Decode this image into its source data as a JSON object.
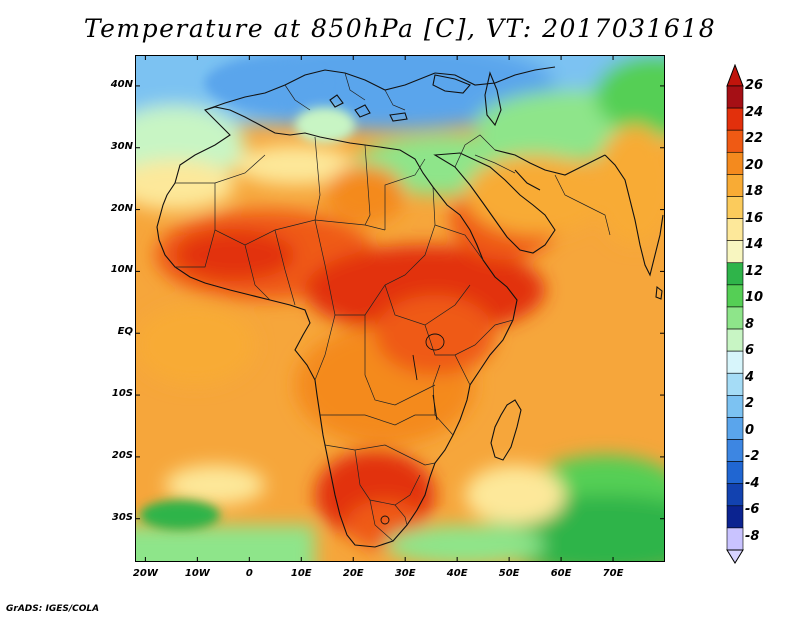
{
  "title": "Temperature at 850hPa [C], VT: 2017031618",
  "credit": "GrADS: IGES/COLA",
  "map": {
    "variable": "Temperature at 850hPa",
    "units": "C",
    "valid_time": "2017031618",
    "lon_range": [
      -22,
      80
    ],
    "lat_range": [
      -37,
      45
    ],
    "projection": "latlon",
    "lat_labels": [
      "40N",
      "30N",
      "20N",
      "10N",
      "EQ",
      "10S",
      "20S",
      "30S"
    ],
    "lat_values": [
      40,
      30,
      20,
      10,
      0,
      -10,
      -20,
      -30
    ],
    "lon_labels": [
      "20W",
      "10W",
      "0",
      "10E",
      "20E",
      "30E",
      "40E",
      "50E",
      "60E",
      "70E"
    ],
    "lon_values": [
      -20,
      -10,
      0,
      10,
      20,
      30,
      40,
      50,
      60,
      70
    ]
  },
  "colorbar": {
    "labels": [
      "26",
      "24",
      "22",
      "20",
      "18",
      "16",
      "14",
      "12",
      "10",
      "8",
      "6",
      "4",
      "2",
      "0",
      "-2",
      "-4",
      "-6",
      "-8"
    ],
    "colors": [
      "#a50f15",
      "#e2300c",
      "#ef5a14",
      "#f48a1e",
      "#f8ab35",
      "#fbcb5c",
      "#fde89a",
      "#f8f6c0",
      "#2fb44a",
      "#55cf55",
      "#8ee58a",
      "#c8f5c4",
      "#d7f5fb",
      "#a5dcf6",
      "#7cc2f2",
      "#5aa5ec",
      "#3d86e2",
      "#2066d2",
      "#1242b0",
      "#0b2390",
      "#c9c3ff"
    ],
    "top_arrow_color": "#c0140c",
    "bottom_arrow_color": "#d8d4ff"
  }
}
